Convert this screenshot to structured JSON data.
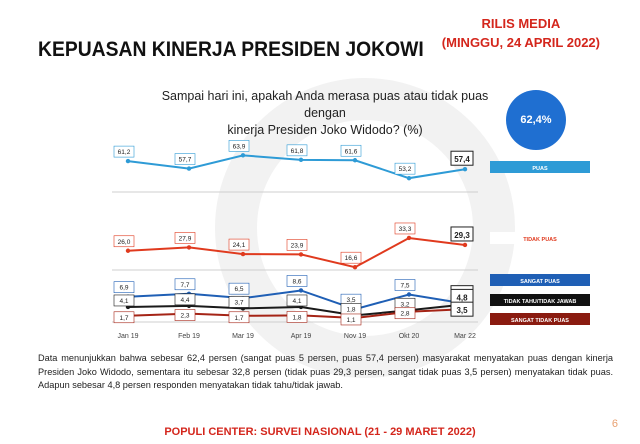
{
  "header": {
    "title": "KEPUASAN KINERJA PRESIDEN JOKOWI",
    "release_line1": "RILIS MEDIA",
    "release_line2": "(MINGGU, 24 APRIL 2022)"
  },
  "question": {
    "line1": "Sampai hari ini, apakah Anda merasa puas atau tidak puas dengan",
    "line2": "kinerja Presiden Joko Widodo? (%)"
  },
  "highlight": {
    "value": "62,4%"
  },
  "chart_data": {
    "type": "line",
    "categories": [
      "Jan 19",
      "Feb 19",
      "Mar 19",
      "Apr 19",
      "Nov 19",
      "Okt 20",
      "Mar 22"
    ],
    "series": [
      {
        "name": "PUAS",
        "color": "#2e9bd6",
        "values": [
          61.2,
          57.7,
          63.9,
          61.8,
          61.6,
          53.2,
          57.4
        ],
        "labels": [
          "61,2",
          "57,7",
          "63,9",
          "61,8",
          "61,6",
          "53,2",
          "57,4"
        ]
      },
      {
        "name": "TIDAK PUAS",
        "color": "#e03a1e",
        "values": [
          26.0,
          27.9,
          24.1,
          23.9,
          16.6,
          33.3,
          29.3
        ],
        "labels": [
          "26,0",
          "27,9",
          "24,1",
          "23,9",
          "16,6",
          "33,3",
          "29,3"
        ]
      },
      {
        "name": "SANGAT PUAS",
        "color": "#1f5fb5",
        "values": [
          6.9,
          7.7,
          6.5,
          8.6,
          3.5,
          7.5,
          5.0
        ],
        "labels": [
          "6,9",
          "7,7",
          "6,5",
          "8,6",
          "3,5",
          "7,5",
          "5,0"
        ]
      },
      {
        "name": "TIDAK TAHU/TIDAK JAWAB",
        "color": "#1a1a1a",
        "values": [
          4.1,
          4.4,
          3.7,
          4.1,
          1.8,
          3.2,
          4.8
        ],
        "labels": [
          "4,1",
          "4,4",
          "3,7",
          "4,1",
          "1,8",
          "3,2",
          "4,8"
        ]
      },
      {
        "name": "SANGAT TIDAK PUAS",
        "color": "#a52416",
        "values": [
          1.7,
          2.3,
          1.7,
          1.8,
          1.1,
          2.8,
          3.5
        ],
        "labels": [
          "1,7",
          "2,3",
          "1,7",
          "1,8",
          "1,1",
          "2,8",
          "3,5"
        ]
      }
    ],
    "legend_position": "right"
  },
  "description": "Data menunjukkan bahwa sebesar 62,4 persen (sangat puas 5 persen, puas 57,4 persen) masyarakat menyatakan puas dengan kinerja Presiden Joko Widodo, sementara itu sebesar 32,8 persen (tidak puas 29,3 persen, sangat tidak puas 3,5 persen) menyatakan tidak puas. Adapun sebesar 4,8 persen responden menyatakan tidak tahu/tidak jawab.",
  "footer": {
    "source": "POPULI CENTER: SURVEI NASIONAL (21 - 29 MARET 2022)",
    "page": "6"
  }
}
